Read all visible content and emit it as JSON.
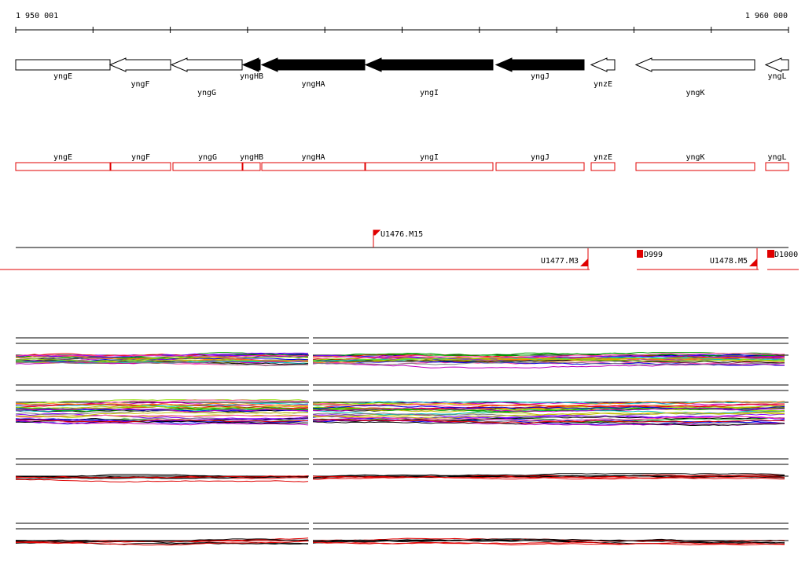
{
  "ruler": {
    "start": "1 950 001",
    "end": "1 960 000"
  },
  "genes": [
    {
      "label": "yngE"
    },
    {
      "label": "yngF"
    },
    {
      "label": "yngG"
    },
    {
      "label": "yngHB"
    },
    {
      "label": "yngHA"
    },
    {
      "label": "yngI"
    },
    {
      "label": "yngJ"
    },
    {
      "label": "ynzE"
    },
    {
      "label": "yngK"
    },
    {
      "label": "yngL"
    }
  ],
  "transcripts": [
    {
      "label": "yngE"
    },
    {
      "label": "yngF"
    },
    {
      "label": "yngG"
    },
    {
      "label": "yngHB"
    },
    {
      "label": "yngHA"
    },
    {
      "label": "yngI"
    },
    {
      "label": "yngJ"
    },
    {
      "label": "ynzE"
    },
    {
      "label": "yngK"
    },
    {
      "label": "yngL"
    }
  ],
  "markers": [
    {
      "label": "U1476.M15"
    },
    {
      "label": "U1477.M3"
    },
    {
      "label": "D999"
    },
    {
      "label": "U1478.M5"
    },
    {
      "label": "D1000"
    }
  ]
}
